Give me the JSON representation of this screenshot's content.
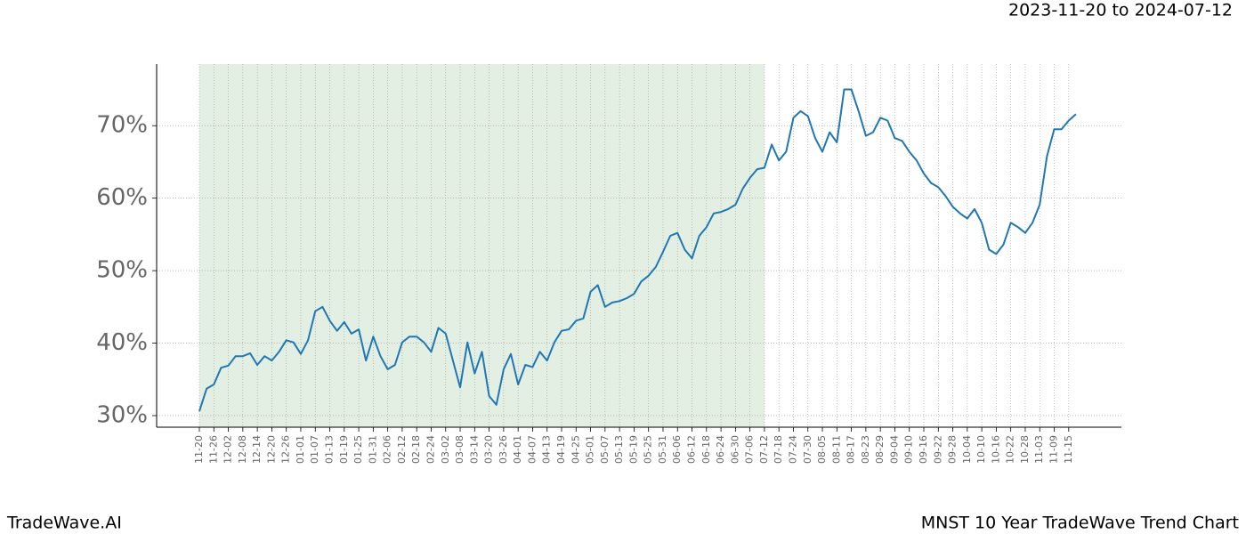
{
  "chart_data": {
    "type": "line",
    "title": "2023-11-20 to 2024-07-12",
    "footer_left": "TradeWave.AI",
    "footer_right": "MNST 10 Year TradeWave Trend Chart",
    "categories": [
      "11-20",
      null,
      "11-26",
      null,
      "12-02",
      null,
      "12-08",
      null,
      "12-14",
      null,
      "12-20",
      null,
      "12-26",
      null,
      "01-01",
      null,
      "01-07",
      null,
      "01-13",
      null,
      "01-19",
      null,
      "01-25",
      null,
      "01-31",
      null,
      "02-06",
      null,
      "02-12",
      null,
      "02-18",
      null,
      "02-24",
      null,
      "03-02",
      null,
      "03-08",
      null,
      "03-14",
      null,
      "03-20",
      null,
      "03-26",
      null,
      "04-01",
      null,
      "04-07",
      null,
      "04-13",
      null,
      "04-19",
      null,
      "04-25",
      null,
      "05-01",
      null,
      "05-07",
      null,
      "05-13",
      null,
      "05-19",
      null,
      "05-25",
      null,
      "05-31",
      null,
      "06-06",
      null,
      "06-12",
      null,
      "06-18",
      null,
      "06-24",
      null,
      "06-30",
      null,
      "07-06",
      null,
      "07-12",
      null,
      "07-18",
      null,
      "07-24",
      null,
      "07-30",
      null,
      "08-05",
      null,
      "08-11",
      null,
      "08-17",
      null,
      "08-23",
      null,
      "08-29",
      null,
      "09-04",
      null,
      "09-10",
      null,
      "09-16",
      null,
      "09-22",
      null,
      "09-28",
      null,
      "10-04",
      null,
      "10-10",
      null,
      "10-16",
      null,
      "10-22",
      null,
      "10-28",
      null,
      "11-03",
      null,
      "11-09",
      null,
      "11-15",
      null
    ],
    "values": [
      30.6,
      33.7,
      34.3,
      36.6,
      36.9,
      38.2,
      38.2,
      38.6,
      37.0,
      38.2,
      37.6,
      38.8,
      40.4,
      40.1,
      38.5,
      40.4,
      44.4,
      45.0,
      43.1,
      41.7,
      42.9,
      41.3,
      41.9,
      37.6,
      40.9,
      38.2,
      36.4,
      37.0,
      40.1,
      40.9,
      40.9,
      40.1,
      38.8,
      42.1,
      41.3,
      37.6,
      33.9,
      40.1,
      35.8,
      38.8,
      32.7,
      31.5,
      36.4,
      38.5,
      34.3,
      37.0,
      36.7,
      38.8,
      37.6,
      40.1,
      41.7,
      41.9,
      43.1,
      43.4,
      47.1,
      48.0,
      45.0,
      45.6,
      45.8,
      46.2,
      46.8,
      48.5,
      49.3,
      50.5,
      52.6,
      54.8,
      55.2,
      52.9,
      51.7,
      54.8,
      56.0,
      57.9,
      58.1,
      58.5,
      59.1,
      61.3,
      62.8,
      64.0,
      64.2,
      67.4,
      65.2,
      66.4,
      71.1,
      72.0,
      71.3,
      68.3,
      66.4,
      69.1,
      67.7,
      75.0,
      75.0,
      72.0,
      68.6,
      69.1,
      71.1,
      70.7,
      68.3,
      67.9,
      66.4,
      65.2,
      63.4,
      62.1,
      61.5,
      60.3,
      58.8,
      57.9,
      57.2,
      58.5,
      56.6,
      52.9,
      52.3,
      53.6,
      56.6,
      56.0,
      55.2,
      56.6,
      59.1,
      65.8,
      69.5,
      69.5,
      70.7,
      71.6
    ],
    "color": "#1f77b4",
    "shade_color": "#e3efe3",
    "ylim": [
      28.4,
      78.5
    ],
    "yticks": [
      {
        "value": 30,
        "label": "30%"
      },
      {
        "value": 40,
        "label": "40%"
      },
      {
        "value": 50,
        "label": "50%"
      },
      {
        "value": 60,
        "label": "60%"
      },
      {
        "value": 70,
        "label": "70%"
      }
    ],
    "grid": true
  }
}
